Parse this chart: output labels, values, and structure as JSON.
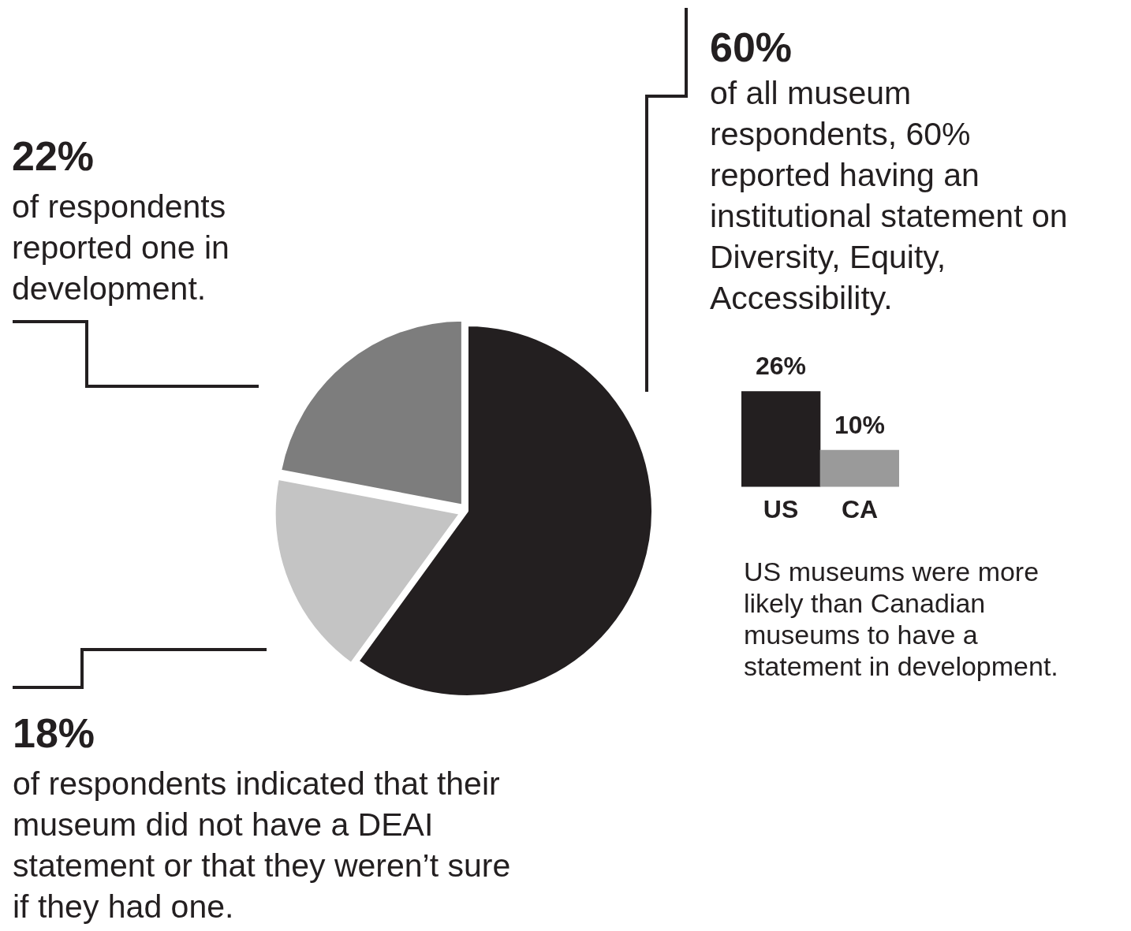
{
  "chart_data": [
    {
      "type": "pie",
      "categories": [
        null,
        null,
        null
      ],
      "values": [
        60,
        18,
        22
      ],
      "colors": [
        "#231f20",
        "#c4c4c4",
        "#7d7d7d"
      ],
      "annotations": [
        "60%",
        "of all museum respondents, 60% reported having an institutional statement on Diversity, Equity, Accessibility.",
        "18%",
        "of respondents indicated that their museum did not have a DEAI statement or that they weren’t sure if they had one.",
        "22%",
        "of respondents reported one in development."
      ]
    },
    {
      "type": "bar",
      "categories": [
        "US",
        "CA"
      ],
      "values": [
        26,
        10
      ],
      "colors": [
        "#231f20",
        "#9a9a9a"
      ],
      "value_labels": [
        "26%",
        "10%"
      ],
      "annotations": [
        "US museums were more likely than Canadian museums to have a statement in development."
      ]
    }
  ]
}
